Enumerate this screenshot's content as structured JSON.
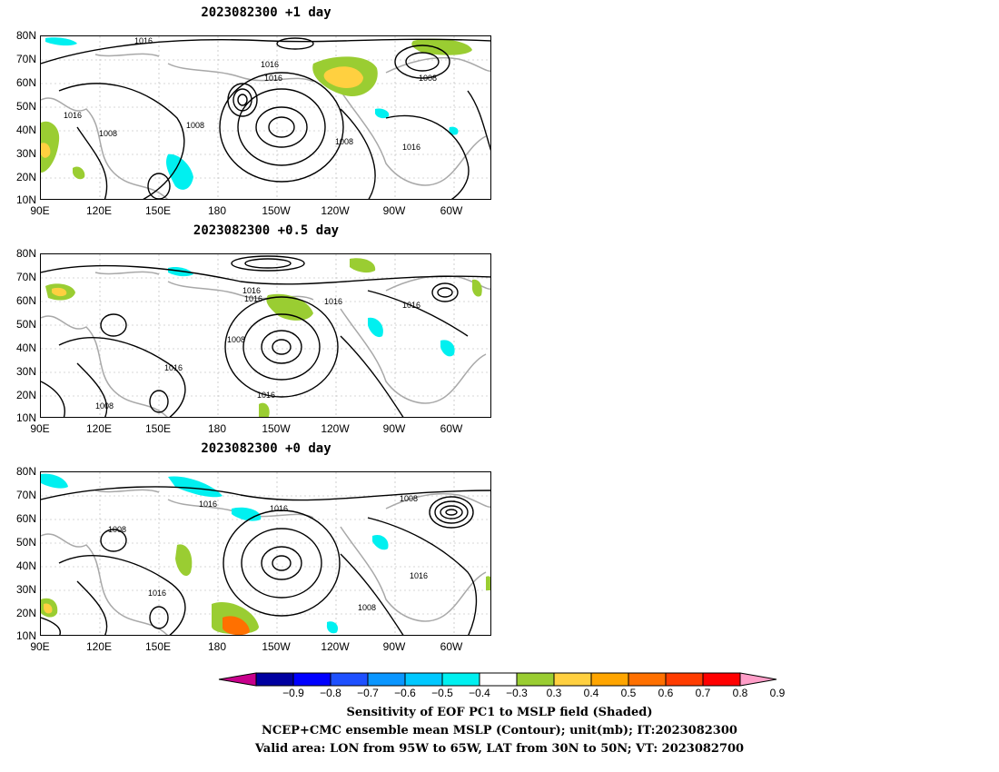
{
  "panels": [
    {
      "title": "2023082300  +1 day"
    },
    {
      "title": "2023082300  +0.5 day"
    },
    {
      "title": "2023082300  +0 day"
    }
  ],
  "y_ticks": [
    "80N",
    "70N",
    "60N",
    "50N",
    "40N",
    "30N",
    "20N",
    "10N"
  ],
  "x_ticks": [
    "90E",
    "120E",
    "150E",
    "180",
    "150W",
    "120W",
    "90W",
    "60W"
  ],
  "contour_labels": {
    "p1": [
      "1016",
      "1016",
      "1016",
      "1008",
      "1016",
      "1008",
      "1008",
      "1008",
      "1016"
    ],
    "p2": [
      "1016",
      "1016",
      "1016",
      "1016",
      "1008",
      "1016",
      "1016",
      "1008"
    ],
    "p3": [
      "1016",
      "1016",
      "1008",
      "1008",
      "1016",
      "1016",
      "1008"
    ]
  },
  "colorbar": {
    "labels": [
      "−0.9",
      "−0.8",
      "−0.7",
      "−0.6",
      "−0.5",
      "−0.4",
      "−0.3",
      "0.3",
      "0.4",
      "0.5",
      "0.6",
      "0.7",
      "0.8",
      "0.9"
    ],
    "colors": [
      "#c8008c",
      "#0000a0",
      "#0000ff",
      "#1e50ff",
      "#0a96ff",
      "#00c8ff",
      "#00f0f0",
      "#ffffff",
      "#9acd32",
      "#ffd040",
      "#ffa500",
      "#ff7000",
      "#ff3c00",
      "#ff0000",
      "#ff9ec8"
    ]
  },
  "caption": {
    "line1": "Sensitivity of EOF PC1 to MSLP field (Shaded)",
    "line2": "NCEP+CMC ensemble mean MSLP (Contour); unit(mb); IT:2023082300",
    "line3": "Valid area: LON from 95W to 65W, LAT from 30N to 50N; VT: 2023082700"
  }
}
